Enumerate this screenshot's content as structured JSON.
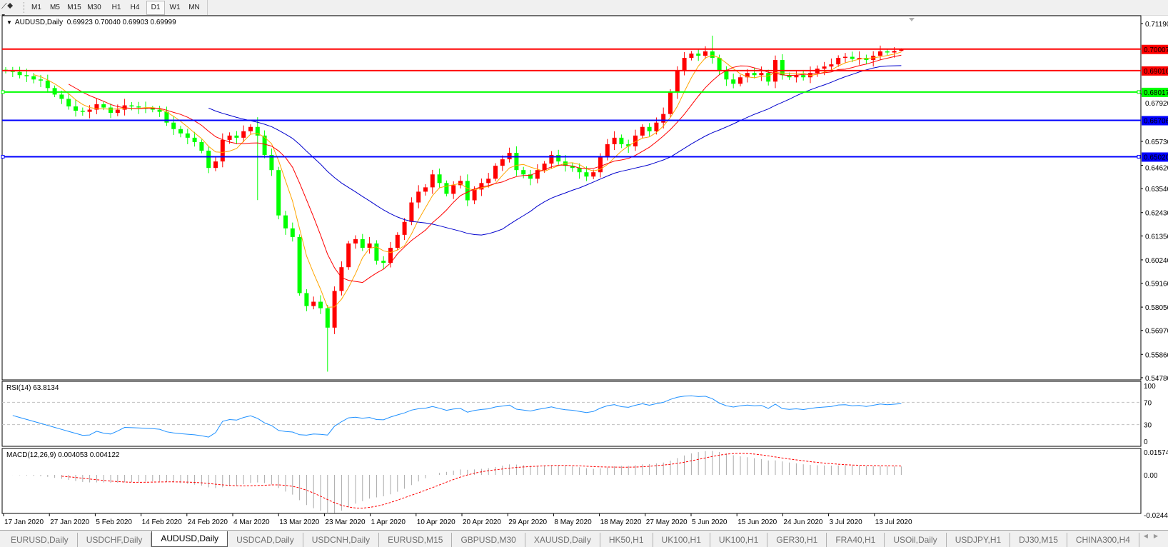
{
  "toolbar": {
    "timeframes": [
      "M1",
      "M5",
      "M15",
      "M30",
      "H1",
      "H4",
      "D1",
      "W1",
      "MN"
    ],
    "active_timeframe": "D1"
  },
  "chart": {
    "symbol_label": "AUDUSD,Daily",
    "ohlc_text": "0.69923 0.70040 0.69903 0.69999",
    "colors": {
      "bull": "#ff0000",
      "bear": "#00ff00",
      "ma_fast": "#ffa500",
      "ma_mid": "#ff0000",
      "ma_slow": "#0000cd",
      "rsi": "#1e90ff",
      "macd_hist": "#a9a9a9",
      "macd_signal": "#ff0000"
    },
    "moving_averages": [
      {
        "period": 5,
        "color": "#ffa500"
      },
      {
        "period": 10,
        "color": "#ff0000"
      },
      {
        "period": 30,
        "color": "#0000cd"
      }
    ],
    "price_axis_ticks": [
      "0.71190",
      "0.67920",
      "0.65730",
      "0.64620",
      "0.63540",
      "0.62430",
      "0.61350",
      "0.60240",
      "0.59160",
      "0.58050",
      "0.56970",
      "0.55860",
      "0.54780"
    ],
    "horizontal_lines": [
      {
        "price": 0.70007,
        "label": "0.70007",
        "color": "#ff0000"
      },
      {
        "price": 0.6901,
        "label": "0.69010",
        "color": "#ff0000"
      },
      {
        "price": 0.68017,
        "label": "0.68017",
        "color": "#00ff00",
        "handles": true
      },
      {
        "price": 0.66706,
        "label": "0.66706",
        "color": "#0000ff"
      },
      {
        "price": 0.6502,
        "label": "0.65020",
        "color": "#0000ff",
        "handles": true
      }
    ],
    "date_labels": [
      "17 Jan 2020",
      "27 Jan 2020",
      "5 Feb 2020",
      "14 Feb 2020",
      "24 Feb 2020",
      "4 Mar 2020",
      "13 Mar 2020",
      "23 Mar 2020",
      "1 Apr 2020",
      "10 Apr 2020",
      "20 Apr 2020",
      "29 Apr 2020",
      "8 May 2020",
      "18 May 2020",
      "27 May 2020",
      "5 Jun 2020",
      "15 Jun 2020",
      "24 Jun 2020",
      "3 Jul 2020",
      "13 Jul 2020"
    ]
  },
  "chart_data": {
    "type": "candlestick",
    "price_range": [
      0.5478,
      0.7119
    ],
    "closes": [
      0.69,
      0.6895,
      0.688,
      0.6875,
      0.686,
      0.6855,
      0.682,
      0.679,
      0.677,
      0.6735,
      0.6715,
      0.671,
      0.672,
      0.6745,
      0.673,
      0.6705,
      0.672,
      0.674,
      0.6735,
      0.673,
      0.6725,
      0.672,
      0.671,
      0.666,
      0.663,
      0.661,
      0.659,
      0.657,
      0.653,
      0.645,
      0.648,
      0.658,
      0.66,
      0.659,
      0.662,
      0.664,
      0.66,
      0.651,
      0.644,
      0.623,
      0.617,
      0.613,
      0.587,
      0.581,
      0.583,
      0.58,
      0.571,
      0.588,
      0.599,
      0.61,
      0.612,
      0.608,
      0.61,
      0.602,
      0.601,
      0.608,
      0.614,
      0.62,
      0.629,
      0.634,
      0.636,
      0.642,
      0.638,
      0.633,
      0.637,
      0.639,
      0.63,
      0.635,
      0.638,
      0.64,
      0.646,
      0.649,
      0.652,
      0.644,
      0.642,
      0.64,
      0.644,
      0.647,
      0.651,
      0.648,
      0.646,
      0.645,
      0.643,
      0.641,
      0.643,
      0.65,
      0.656,
      0.659,
      0.656,
      0.655,
      0.66,
      0.664,
      0.662,
      0.666,
      0.67,
      0.68,
      0.69,
      0.696,
      0.698,
      0.697,
      0.699,
      0.696,
      0.69,
      0.686,
      0.684,
      0.687,
      0.689,
      0.688,
      0.689,
      0.685,
      0.695,
      0.688,
      0.687,
      0.688,
      0.687,
      0.689,
      0.691,
      0.692,
      0.693,
      0.696,
      0.6965,
      0.6955,
      0.696,
      0.695,
      0.697,
      0.699,
      0.6985,
      0.6992,
      0.69999
    ],
    "last_bar": {
      "open": 0.69923,
      "high": 0.7004,
      "low": 0.69903,
      "close": 0.69999
    },
    "notable_extremes": [
      {
        "index": 36,
        "high": 0.6685,
        "low": 0.6301
      },
      {
        "index": 46,
        "low": 0.5506
      },
      {
        "index": 101,
        "high": 0.7063
      }
    ]
  },
  "rsi": {
    "label": "RSI(14) 63.8134",
    "period": 14,
    "levels": [
      70,
      30
    ],
    "axis_ticks": [
      "100",
      "70",
      "30",
      "0"
    ]
  },
  "macd": {
    "label": "MACD(12,26,9) 0.004053 0.004122",
    "params": [
      12,
      26,
      9
    ],
    "axis_ticks": [
      "0.01574",
      "0.00",
      "-0.02441"
    ],
    "range": [
      -0.02441,
      0.01574
    ]
  },
  "tabs": {
    "items": [
      "EURUSD,Daily",
      "USDCHF,Daily",
      "AUDUSD,Daily",
      "USDCAD,Daily",
      "USDCNH,Daily",
      "EURUSD,M15",
      "GBPUSD,M30",
      "XAUUSD,Daily",
      "HK50,H1",
      "UK100,H1",
      "UK100,H1",
      "GER30,H1",
      "FRA40,H1",
      "USOil,Daily",
      "USDJPY,H1",
      "DJ30,M15",
      "CHINA300,H4"
    ],
    "active": "AUDUSD,Daily",
    "scroll_left": "◀",
    "scroll_right": "▶"
  }
}
